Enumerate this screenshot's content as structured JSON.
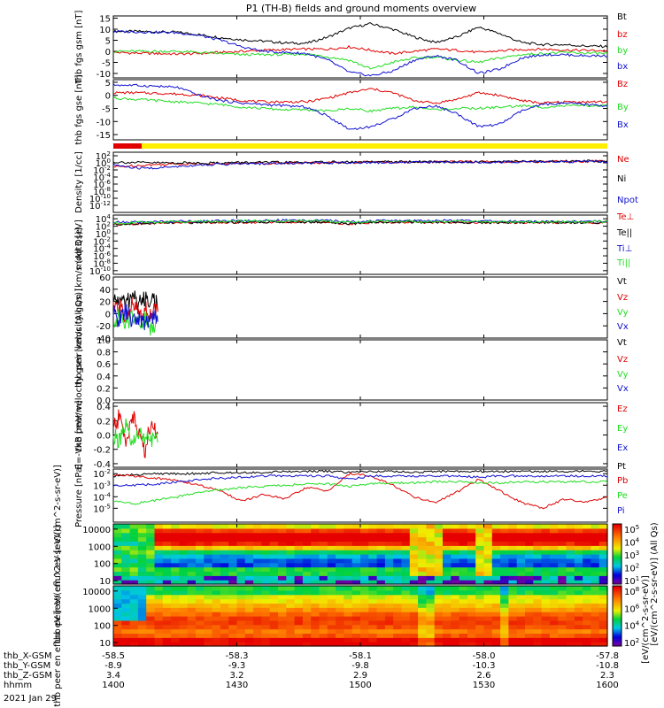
{
  "title": "P1 (TH-B) fields and ground moments overview",
  "date_label": "2021 Jan 29",
  "colors": {
    "black": "#000000",
    "red": "#e00000",
    "green": "#22dd22",
    "blue": "#1010d0",
    "yellow": "#ffee00",
    "bar_red": "#e00000"
  },
  "ephemeris": {
    "labels": [
      "thb_X-GSM",
      "thb_Y-GSM",
      "thb_Z-GSM",
      "hhmm"
    ],
    "columns": [
      {
        "x": "-58.5",
        "y": "-8.9",
        "z": "3.4",
        "hhmm": "1400"
      },
      {
        "x": "-58.3",
        "y": "-9.3",
        "z": "3.2",
        "hhmm": "1430"
      },
      {
        "x": "-58.1",
        "y": "-9.8",
        "z": "2.9",
        "hhmm": "1500"
      },
      {
        "x": "-58.0",
        "y": "-10.3",
        "z": "2.6",
        "hhmm": "1530"
      },
      {
        "x": "-57.8",
        "y": "-10.8",
        "z": "2.3",
        "hhmm": "1600"
      }
    ]
  },
  "colorbar": {
    "label": "[eV/(cm^2-s-sr-eV)] (All Qs)",
    "label2": "[eV/(cm^2-s-sr-eV)]",
    "top_ticks": [
      "10^5",
      "10^4",
      "10^3",
      "10^2",
      "10^1"
    ],
    "bottom_ticks": [
      "10^8",
      "10^6",
      "10^4",
      "10^2"
    ]
  },
  "chart_data": [
    {
      "type": "line",
      "ylabel": "thb fgs gsm [nT]",
      "ylim": [
        -12,
        16
      ],
      "yticks": [
        "15",
        "10",
        "5",
        "0",
        "-5",
        "-10"
      ],
      "series": [
        {
          "name": "Bt",
          "color": "black",
          "values": [
            9,
            9,
            8.8,
            8.6,
            7.5,
            6.2,
            5.2,
            4.6,
            3.8,
            3.6,
            6.5,
            10.5,
            12.5,
            10,
            6.5,
            4,
            6.5,
            11,
            8,
            4,
            3,
            3,
            2.4,
            2.2
          ]
        },
        {
          "name": "bz",
          "color": "red",
          "values": [
            -0.5,
            -0.8,
            -1,
            -1.2,
            -1,
            -0.5,
            0,
            0.5,
            0.8,
            1,
            1,
            2,
            0.5,
            -1,
            0,
            1,
            0.5,
            -0.5,
            0.2,
            0.8,
            1,
            0.6,
            0.4,
            0.3
          ]
        },
        {
          "name": "by",
          "color": "green",
          "values": [
            0,
            0,
            0,
            0,
            -0.5,
            -1,
            -1.5,
            -1.5,
            -1.5,
            -1.2,
            -2.5,
            -4,
            -8,
            -5,
            -3,
            -2.5,
            -4,
            -5,
            -3,
            -1.5,
            -1,
            -0.5,
            -0.8,
            -1
          ]
        },
        {
          "name": "bx",
          "color": "blue",
          "values": [
            9,
            8.8,
            8.6,
            8.4,
            7.2,
            5,
            2,
            0,
            -0.5,
            -1,
            -4,
            -9.5,
            -11,
            -9,
            -4,
            -2,
            -4,
            -10,
            -8,
            -3,
            -1.5,
            -1.5,
            -2,
            -2
          ]
        }
      ]
    },
    {
      "type": "line",
      "ylabel": "thb fgs gse [nT]",
      "ylim": [
        -17,
        6
      ],
      "yticks": [
        "5",
        "0",
        "-5",
        "-10",
        "-15"
      ],
      "series": [
        {
          "name": "Bz",
          "color": "red",
          "values": [
            1,
            1,
            0.8,
            0.5,
            0,
            -1,
            -2,
            -2.5,
            -2.5,
            -2.5,
            -1,
            1,
            2.5,
            1,
            -2,
            -3,
            -1.5,
            1,
            0,
            -2,
            -3,
            -2.5,
            -2.5,
            -2.5
          ]
        },
        {
          "name": "By",
          "color": "green",
          "values": [
            -1,
            -1.5,
            -2,
            -2.5,
            -3,
            -3.5,
            -4.5,
            -5,
            -5.5,
            -5.5,
            -6,
            -5,
            -6,
            -5,
            -4.5,
            -5.5,
            -5,
            -5,
            -4.5,
            -4,
            -4.5,
            -4,
            -4,
            -4
          ]
        },
        {
          "name": "Bx",
          "color": "blue",
          "values": [
            4,
            3.8,
            3.5,
            3,
            0,
            -2,
            -3,
            -3.5,
            -4,
            -4.5,
            -8,
            -13,
            -12,
            -9,
            -5,
            -4,
            -7,
            -12,
            -11,
            -6,
            -3.5,
            -3,
            -3.5,
            -4
          ]
        }
      ]
    },
    {
      "type": "line",
      "log": true,
      "ylabel": "Density [1/cc]",
      "ylim": [
        -14,
        3
      ],
      "yticks": [
        "10^2",
        "10^0",
        "10^-2",
        "10^-4",
        "10^-6",
        "10^-8",
        "10^-10",
        "10^-12"
      ],
      "series": [
        {
          "name": "Ne",
          "color": "red",
          "values": [
            -1.2,
            -0.8,
            -0.5,
            -0.3,
            -0.2,
            -0.2,
            -0.1,
            -0.1,
            0,
            0,
            0.1,
            0.1,
            0.2,
            0.2,
            0.2,
            0.3,
            0.3,
            0.3,
            0.3,
            0.3,
            0.4,
            0.4,
            0.4,
            0.4
          ]
        },
        {
          "name": "Ni",
          "color": "black",
          "values": [
            0.2,
            0.1,
            0,
            0,
            0,
            0,
            0.1,
            0.1,
            0.1,
            0.1,
            0.2,
            0.2,
            0.2,
            0.3,
            0.3,
            0.3,
            0.3,
            0.3,
            0.4,
            0.4,
            0.4,
            0.4,
            0.5,
            0.5
          ]
        },
        {
          "name": "Npot",
          "color": "blue",
          "values": [
            -0.5,
            -1.5,
            -1.5,
            -1,
            -0.6,
            -0.4,
            -0.3,
            -0.2,
            -0.1,
            0,
            0,
            0.1,
            0.1,
            0.1,
            0.2,
            0.2,
            0.2,
            0.2,
            0.2,
            0.3,
            0.3,
            0.3,
            0.3,
            0.3
          ]
        }
      ]
    },
    {
      "type": "line",
      "log": true,
      "ylabel": "moqt3 [eV]",
      "ylim": [
        -11,
        5
      ],
      "yticks": [
        "10^4",
        "10^2",
        "10^0",
        "10^-2",
        "10^-4",
        "10^-6",
        "10^-8",
        "10^-10"
      ],
      "series": [
        {
          "name": "Te⊥",
          "color": "red",
          "values": [
            2.4,
            2.6,
            2.8,
            3,
            3,
            3,
            3,
            3.1,
            3.1,
            3.1,
            3.1,
            2.5,
            3,
            3,
            3,
            3,
            3,
            3,
            3,
            3,
            3,
            3,
            3,
            3
          ]
        },
        {
          "name": "Te||",
          "color": "black",
          "values": [
            2.5,
            2.7,
            2.9,
            3,
            3,
            3.1,
            3.1,
            3.1,
            3.1,
            3.1,
            3.1,
            2.6,
            3.1,
            3.1,
            3.1,
            3.1,
            3,
            3,
            3,
            3,
            3,
            3,
            3,
            3
          ]
        },
        {
          "name": "Ti⊥",
          "color": "blue",
          "values": [
            3,
            3.1,
            3.2,
            3.3,
            3.4,
            3.4,
            3.5,
            3.5,
            3.6,
            3.6,
            3.5,
            3.2,
            3.4,
            3.5,
            3.5,
            3.5,
            3.5,
            3.4,
            3.3,
            3.3,
            3.3,
            3.3,
            3.3,
            3.3
          ]
        },
        {
          "name": "Ti||",
          "color": "green",
          "values": [
            2.8,
            3,
            3.1,
            3.2,
            3.3,
            3.3,
            3.4,
            3.4,
            3.4,
            3.4,
            3.3,
            3,
            3.2,
            3.3,
            3.3,
            3.3,
            3.3,
            3.2,
            3.2,
            3.2,
            3.2,
            3.2,
            3.2,
            3.2
          ]
        }
      ]
    },
    {
      "type": "line",
      "ylabel": "thb peir velocity gsm [km/s (All Qs)]",
      "ylim": [
        -40,
        60
      ],
      "yticks": [
        "60",
        "40",
        "20",
        "0",
        "-20",
        "-40"
      ],
      "partial_x_end": 0.09,
      "series": [
        {
          "name": "Vt",
          "color": "black",
          "values": [
            20,
            25,
            15,
            30,
            18,
            22,
            28,
            12
          ]
        },
        {
          "name": "Vz",
          "color": "red",
          "values": [
            5,
            10,
            -5,
            15,
            0,
            8,
            -3,
            10
          ]
        },
        {
          "name": "Vy",
          "color": "green",
          "values": [
            -10,
            -5,
            -20,
            0,
            -15,
            -8,
            -25,
            -5
          ]
        },
        {
          "name": "Vx",
          "color": "blue",
          "values": [
            0,
            -10,
            5,
            -15,
            -5,
            -20,
            0,
            -12
          ]
        }
      ]
    },
    {
      "type": "line",
      "ylabel": "thb peer velocity gsm [km/s (All Qs)]",
      "ylim": [
        0,
        1
      ],
      "yticks": [
        "1.0",
        "0.8",
        "0.6",
        "0.4",
        "0.2",
        "0.0"
      ],
      "series": [
        {
          "name": "Vt",
          "color": "black",
          "values": []
        },
        {
          "name": "Vz",
          "color": "red",
          "values": []
        },
        {
          "name": "Vy",
          "color": "green",
          "values": []
        },
        {
          "name": "Vx",
          "color": "blue",
          "values": []
        }
      ]
    },
    {
      "type": "line",
      "ylabel": "E=-VxB [mV/m]",
      "ylim": [
        -0.45,
        0.45
      ],
      "yticks": [
        "0.4",
        "0.2",
        "0.0",
        "-0.2",
        "-0.4"
      ],
      "partial_x_end": 0.09,
      "series": [
        {
          "name": "Ez",
          "color": "red",
          "values": [
            0.1,
            0.25,
            -0.1,
            0.3,
            0.0,
            -0.2,
            0.2,
            -0.05
          ]
        },
        {
          "name": "Ey",
          "color": "green",
          "values": [
            0.0,
            -0.1,
            0.1,
            -0.15,
            0.05,
            -0.05,
            -0.1,
            0.0
          ]
        },
        {
          "name": "Ex",
          "color": "blue",
          "values": []
        }
      ]
    },
    {
      "type": "line",
      "log": true,
      "ylabel": "Pressure [nPa]",
      "ylim": [
        -6.2,
        -1.6
      ],
      "yticks": [
        "10^-2",
        "10^-3",
        "10^-4",
        "10^-5"
      ],
      "series": [
        {
          "name": "Pt",
          "color": "black",
          "values": [
            -2.2,
            -2.1,
            -2,
            -2,
            -2,
            -1.9,
            -1.9,
            -1.9,
            -1.8,
            -1.8,
            -1.8,
            -1.9,
            -1.8,
            -1.8,
            -1.9,
            -1.8,
            -1.8,
            -1.8,
            -1.8,
            -1.8,
            -1.8,
            -1.8,
            -1.8,
            -1.8
          ]
        },
        {
          "name": "Pb",
          "color": "red",
          "values": [
            -2.1,
            -2.2,
            -2.4,
            -2.6,
            -3,
            -3.5,
            -4.4,
            -3.8,
            -4.2,
            -3.2,
            -3.5,
            -2,
            -2.2,
            -3,
            -4,
            -4.5,
            -3.6,
            -2.5,
            -3.5,
            -4.5,
            -5,
            -4.2,
            -4.5,
            -4
          ]
        },
        {
          "name": "Pe",
          "color": "green",
          "values": [
            -4.4,
            -4.6,
            -4.3,
            -4,
            -3.6,
            -3.4,
            -3.2,
            -3.1,
            -3,
            -2.9,
            -2.9,
            -3.1,
            -2.9,
            -2.8,
            -2.8,
            -2.7,
            -2.7,
            -2.8,
            -2.8,
            -2.7,
            -2.7,
            -2.7,
            -2.7,
            -2.7
          ]
        },
        {
          "name": "Pi",
          "color": "blue",
          "values": [
            -3,
            -3,
            -2.9,
            -2.7,
            -2.5,
            -2.4,
            -2.3,
            -2.2,
            -2.2,
            -2.2,
            -2.2,
            -2.5,
            -2.2,
            -2.2,
            -2.2,
            -2.2,
            -2.2,
            -2.3,
            -2.2,
            -2.2,
            -2.2,
            -2.2,
            -2.2,
            -2.2
          ]
        }
      ]
    },
    {
      "type": "heatmap",
      "ylabel": "thb peir en eflux eV [eV/(cm^2-s-sr-eV)]",
      "ylim_log": [
        0.8,
        4.3
      ],
      "yticks": [
        "10000",
        "1000",
        "100",
        "10"
      ],
      "columns": 60,
      "rows": 14,
      "dip_columns": [
        36,
        37,
        38,
        39,
        44,
        45
      ]
    },
    {
      "type": "heatmap",
      "ylabel": "thb peer en eflux eV [eV/(cm^2-s-sr-eV)]",
      "ylim_log": [
        0.8,
        4.3
      ],
      "yticks": [
        "10000",
        "1000",
        "100",
        "10"
      ],
      "columns": 60,
      "rows": 14,
      "dip_columns": [
        37,
        38,
        47
      ]
    }
  ]
}
